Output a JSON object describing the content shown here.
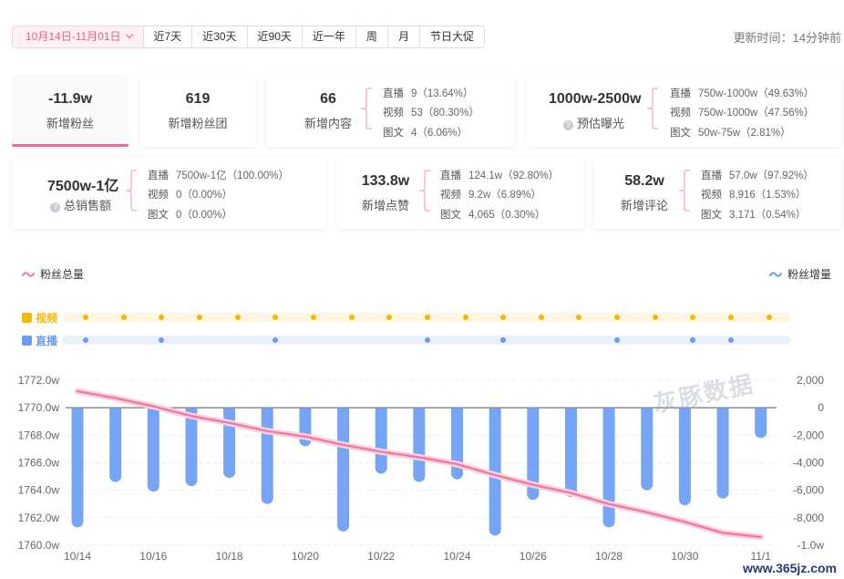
{
  "toolbar": {
    "date_range": "10月14日-11月01日",
    "options": [
      "近7天",
      "近30天",
      "近90天",
      "近一年",
      "周",
      "月",
      "节日大促"
    ]
  },
  "update_time": "更新时间：14分钟前",
  "stats": {
    "fans": {
      "value": "-11.9w",
      "label": "新增粉丝"
    },
    "fan_club": {
      "value": "619",
      "label": "新增粉丝团"
    },
    "content": {
      "value": "66",
      "label": "新增内容",
      "rows": [
        {
          "k": "直播",
          "v": "9（13.64%）"
        },
        {
          "k": "视频",
          "v": "53（80.30%）"
        },
        {
          "k": "图文",
          "v": "4（6.06%）"
        }
      ]
    },
    "exposure": {
      "value": "1000w-2500w",
      "label": "预估曝光",
      "rows": [
        {
          "k": "直播",
          "v": "750w-1000w（49.63%）"
        },
        {
          "k": "视频",
          "v": "750w-1000w（47.56%）"
        },
        {
          "k": "图文",
          "v": "50w-75w（2.81%）"
        }
      ]
    },
    "sales": {
      "value": "7500w-1亿",
      "label": "总销售额",
      "rows": [
        {
          "k": "直播",
          "v": "7500w-1亿（100.00%）"
        },
        {
          "k": "视频",
          "v": "0（0.00%）"
        },
        {
          "k": "图文",
          "v": "0（0.00%）"
        }
      ]
    },
    "likes": {
      "value": "133.8w",
      "label": "新增点赞",
      "rows": [
        {
          "k": "直播",
          "v": "124.1w（92.80%）"
        },
        {
          "k": "视频",
          "v": "9.2w（6.89%）"
        },
        {
          "k": "图文",
          "v": "4,065（0.30%）"
        }
      ]
    },
    "comments": {
      "value": "58.2w",
      "label": "新增评论",
      "rows": [
        {
          "k": "直播",
          "v": "57.0w（97.92%）"
        },
        {
          "k": "视频",
          "v": "8,916（1.53%）"
        },
        {
          "k": "图文",
          "v": "3,171（0.54%）"
        }
      ]
    }
  },
  "legend": {
    "left": "粉丝总量",
    "right": "粉丝增量"
  },
  "tracks": {
    "video": {
      "label": "视频",
      "color": "#f5b800",
      "lane": "#fff6df",
      "days": [
        0,
        1,
        2,
        3,
        4,
        5,
        6,
        7,
        8,
        9,
        10,
        11,
        12,
        13,
        14,
        15,
        16,
        17,
        18
      ]
    },
    "live": {
      "label": "直播",
      "color": "#6b9cf0",
      "lane": "#eaf1fd",
      "days": [
        0,
        2,
        5,
        9,
        11,
        14,
        16,
        17
      ]
    }
  },
  "colors": {
    "accent": "#f06a93",
    "bar": "#76a5f5",
    "line": "#f27ba3"
  },
  "watermark": "灰豚数据",
  "site": "www.365jz.com",
  "chart_data": {
    "type": "bar",
    "x": [
      "10/14",
      "10/15",
      "10/16",
      "10/17",
      "10/18",
      "10/19",
      "10/20",
      "10/21",
      "10/22",
      "10/23",
      "10/24",
      "10/25",
      "10/26",
      "10/27",
      "10/28",
      "10/29",
      "10/30",
      "10/31",
      "11/1"
    ],
    "x_tick_labels": [
      "10/14",
      "10/16",
      "10/18",
      "10/20",
      "10/22",
      "10/24",
      "10/26",
      "10/28",
      "10/30",
      "11/1"
    ],
    "series": [
      {
        "name": "粉丝增量",
        "type": "bar",
        "axis": "right",
        "values": [
          -8700,
          -5400,
          -6100,
          -5700,
          -5100,
          -7000,
          -2800,
          -9000,
          -4800,
          -5400,
          -5200,
          -9300,
          -6700,
          -6500,
          -8700,
          -6000,
          -7100,
          -6600,
          -2200
        ]
      },
      {
        "name": "粉丝总量",
        "type": "line",
        "axis": "left",
        "values": [
          1771.2,
          1770.7,
          1770.1,
          1769.4,
          1768.9,
          1768.3,
          1767.9,
          1767.3,
          1766.8,
          1766.4,
          1765.9,
          1765.1,
          1764.4,
          1763.8,
          1763.0,
          1762.4,
          1761.7,
          1760.9,
          1760.6
        ]
      }
    ],
    "y_left": {
      "ticks": [
        "1760.0w",
        "1762.0w",
        "1764.0w",
        "1766.0w",
        "1768.0w",
        "1770.0w",
        "1772.0w"
      ],
      "ylim": [
        1760,
        1772
      ]
    },
    "y_right": {
      "ticks": [
        "-1.0w",
        "-8,000",
        "-6,000",
        "-4,000",
        "-2,000",
        "0",
        "2,000"
      ],
      "ylim": [
        -10000,
        2000
      ]
    },
    "grid": true
  }
}
